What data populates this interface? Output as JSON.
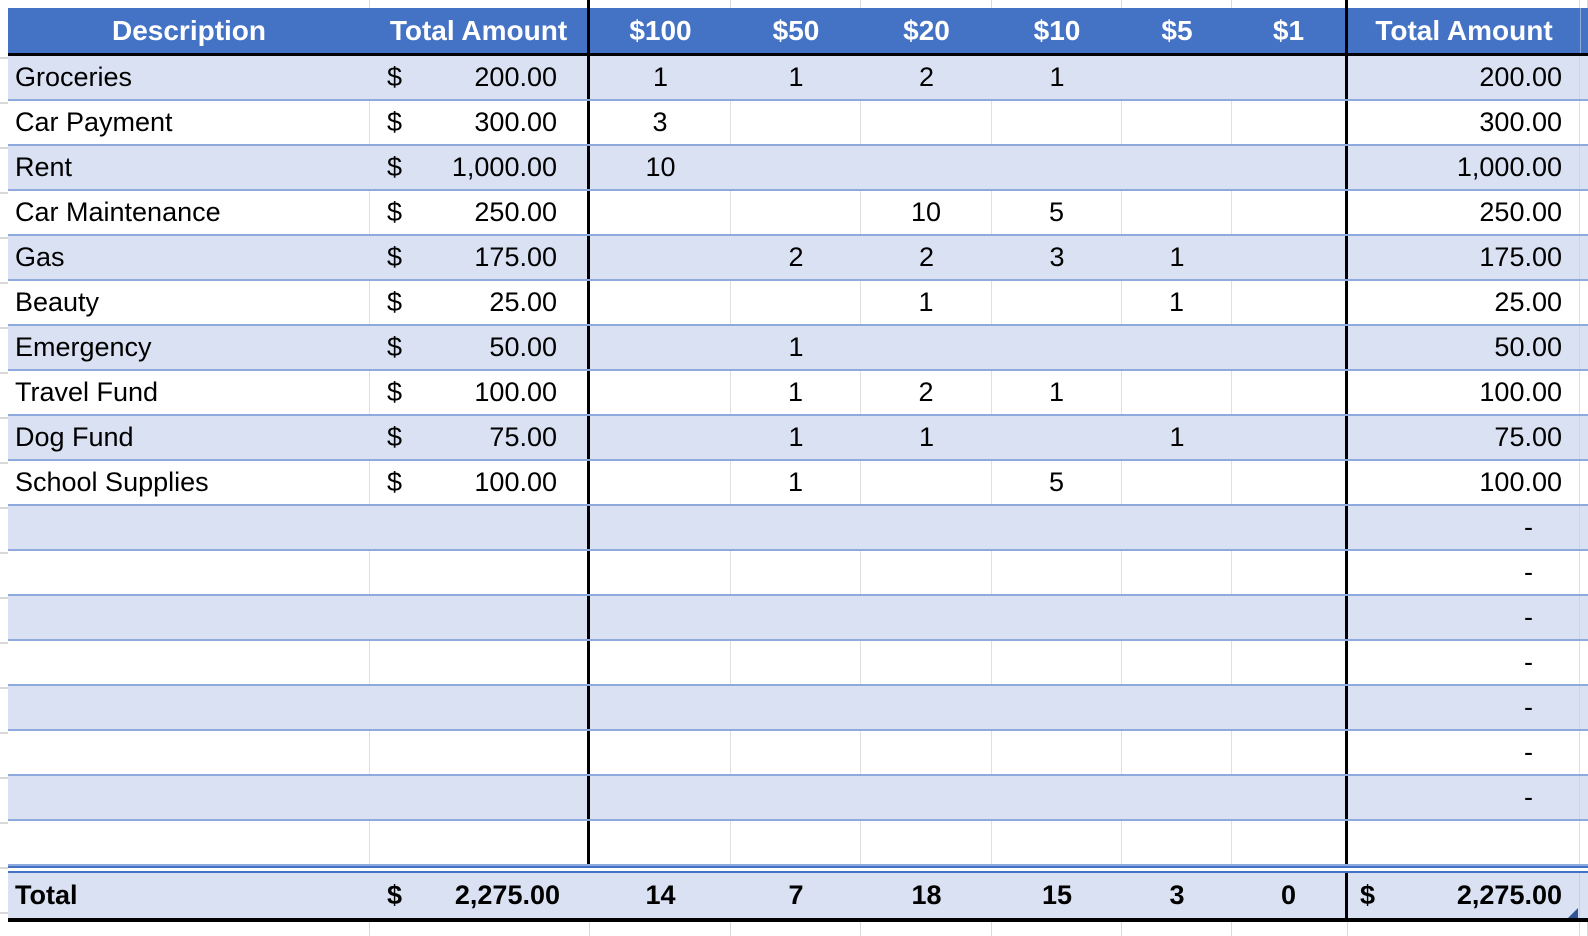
{
  "header": {
    "description": "Description",
    "total_amount_left": "Total Amount",
    "denominations": [
      "$100",
      "$50",
      "$20",
      "$10",
      "$5",
      "$1"
    ],
    "total_amount_right": "Total Amount"
  },
  "entries": [
    {
      "description": "Groceries",
      "currency": "$",
      "amount": "200.00",
      "counts": [
        "1",
        "1",
        "2",
        "1",
        "",
        ""
      ],
      "total": "200.00"
    },
    {
      "description": "Car Payment",
      "currency": "$",
      "amount": "300.00",
      "counts": [
        "3",
        "",
        "",
        "",
        "",
        ""
      ],
      "total": "300.00"
    },
    {
      "description": "Rent",
      "currency": "$",
      "amount": "1,000.00",
      "counts": [
        "10",
        "",
        "",
        "",
        "",
        ""
      ],
      "total": "1,000.00"
    },
    {
      "description": "Car Maintenance",
      "currency": "$",
      "amount": "250.00",
      "counts": [
        "",
        "",
        "10",
        "5",
        "",
        ""
      ],
      "total": "250.00"
    },
    {
      "description": "Gas",
      "currency": "$",
      "amount": "175.00",
      "counts": [
        "",
        "2",
        "2",
        "3",
        "1",
        ""
      ],
      "total": "175.00"
    },
    {
      "description": "Beauty",
      "currency": "$",
      "amount": "25.00",
      "counts": [
        "",
        "",
        "1",
        "",
        "1",
        ""
      ],
      "total": "25.00"
    },
    {
      "description": "Emergency",
      "currency": "$",
      "amount": "50.00",
      "counts": [
        "",
        "1",
        "",
        "",
        "",
        ""
      ],
      "total": "50.00"
    },
    {
      "description": "Travel Fund",
      "currency": "$",
      "amount": "100.00",
      "counts": [
        "",
        "1",
        "2",
        "1",
        "",
        ""
      ],
      "total": "100.00"
    },
    {
      "description": "Dog Fund",
      "currency": "$",
      "amount": "75.00",
      "counts": [
        "",
        "1",
        "1",
        "",
        "1",
        ""
      ],
      "total": "75.00"
    },
    {
      "description": "School Supplies",
      "currency": "$",
      "amount": "100.00",
      "counts": [
        "",
        "1",
        "",
        "5",
        "",
        ""
      ],
      "total": "100.00"
    }
  ],
  "blanks": [
    {
      "total": "-"
    },
    {
      "total": "-"
    },
    {
      "total": "-"
    },
    {
      "total": "-"
    },
    {
      "total": "-"
    },
    {
      "total": "-"
    },
    {
      "total": "-"
    },
    {
      "total": ""
    }
  ],
  "total_row": {
    "label": "Total",
    "currency": "$",
    "amount": "2,275.00",
    "counts": [
      "14",
      "7",
      "18",
      "15",
      "3",
      "0"
    ],
    "total_currency": "$",
    "total": "2,275.00"
  },
  "colors": {
    "header_bg": "#4472C4",
    "header_text": "#FFFFFF",
    "band_fill": "#D9E1F2",
    "row_border": "#8EA9DB",
    "divider_black": "#000000",
    "gridline_gray": "#D9D9D9",
    "corner_marker": "#2F5597"
  }
}
